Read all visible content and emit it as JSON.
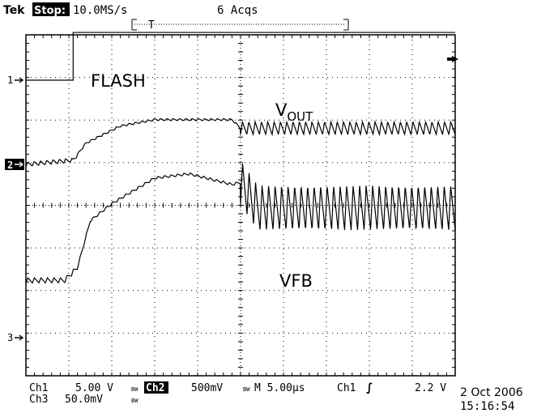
{
  "header": {
    "brand": "Tek",
    "run_state": "Stop:",
    "sample_rate": "10.0MS/s",
    "acquisitions": "6 Acqs",
    "trigger_marker": "T"
  },
  "annotations": {
    "flash": "FLASH",
    "vout_main": "V",
    "vout_sub": "OUT",
    "vfb": "VFB"
  },
  "channel_markers": {
    "ch1": "1",
    "ch2": "2",
    "ch3": "3"
  },
  "footer": {
    "ch1_label": "Ch1",
    "ch1_scale": "5.00 V",
    "ch1_bw": "BW",
    "ch2_label": "Ch2",
    "ch2_scale": "500mV",
    "ch2_bw": "BW",
    "timebase": "M 5.00µs",
    "trigger_source": "Ch1",
    "trigger_slope": "∫",
    "trigger_level": "2.2 V",
    "ch3_label": "Ch3",
    "ch3_scale": "50.0mV",
    "ch3_bw": "BW",
    "date": "2 Oct 2006",
    "time": "15:16:54"
  },
  "colors": {
    "background": "#ffffff",
    "trace": "#000000",
    "graticule": "#000000",
    "badge_bg": "#000000",
    "badge_fg": "#ffffff"
  },
  "chart_data": {
    "type": "line",
    "title": "",
    "xlabel": "",
    "ylabel": "",
    "grid": true,
    "x_divisions": 10,
    "y_divisions": 8,
    "time_per_division_us": 5,
    "x_range_us": [
      -25,
      25
    ],
    "trigger_time_us": 0,
    "series": [
      {
        "name": "FLASH",
        "channel": "Ch1",
        "scale_per_div": "5.00 V",
        "style": "step",
        "low_level_div": 0,
        "high_level_div": 1.12,
        "step_time_us": -19.5
      },
      {
        "name": "VOUT",
        "channel": "Ch2",
        "scale_per_div": "500mV",
        "style": "ripple",
        "baseline_level_div": 0,
        "envelope": {
          "t_us": [
            -25,
            -19.5,
            -18,
            -14,
            -10,
            -5,
            -1,
            0,
            25
          ],
          "level_div": [
            0,
            0.1,
            0.5,
            0.9,
            1.05,
            1.05,
            1.05,
            0.85,
            0.85
          ]
        },
        "ripple_before_rise_div": 0.1,
        "ripple_after_trigger_div": 0.3,
        "ripple_cycles_per_div": 6.8
      },
      {
        "name": "VFB",
        "channel": "Ch3",
        "scale_per_div": "50.0mV",
        "style": "ripple",
        "baseline_level_div": 0,
        "envelope": {
          "t_us": [
            -25,
            -20.5,
            -19,
            -17.5,
            -15,
            -10,
            -6,
            -1,
            0,
            2,
            25
          ],
          "level_div": [
            0.3,
            0.3,
            0.6,
            1.7,
            2.1,
            2.7,
            2.8,
            2.55,
            2.6,
            2.0,
            2.0
          ]
        },
        "ripple_before_rise_div": 0.12,
        "ripple_after_trigger_div": 1.05,
        "ripple_cycles_per_div": 6.6
      }
    ]
  }
}
